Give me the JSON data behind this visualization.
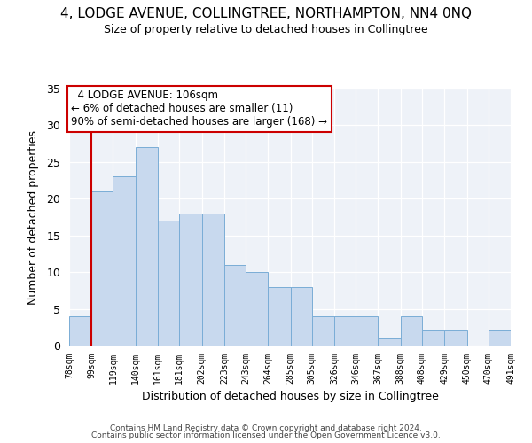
{
  "title": "4, LODGE AVENUE, COLLINGTREE, NORTHAMPTON, NN4 0NQ",
  "subtitle": "Size of property relative to detached houses in Collingtree",
  "xlabel": "Distribution of detached houses by size in Collingtree",
  "ylabel": "Number of detached properties",
  "bar_color": "#c8d9ee",
  "bar_edge_color": "#7aadd6",
  "bins": [
    78,
    99,
    119,
    140,
    161,
    181,
    202,
    223,
    243,
    264,
    285,
    305,
    326,
    346,
    367,
    388,
    408,
    429,
    450,
    470,
    491
  ],
  "counts": [
    4,
    21,
    23,
    27,
    17,
    18,
    18,
    11,
    10,
    8,
    8,
    4,
    4,
    4,
    1,
    4,
    2,
    2,
    0,
    2
  ],
  "tick_labels": [
    "78sqm",
    "99sqm",
    "119sqm",
    "140sqm",
    "161sqm",
    "181sqm",
    "202sqm",
    "223sqm",
    "243sqm",
    "264sqm",
    "285sqm",
    "305sqm",
    "326sqm",
    "346sqm",
    "367sqm",
    "388sqm",
    "408sqm",
    "429sqm",
    "450sqm",
    "470sqm",
    "491sqm"
  ],
  "ylim": [
    0,
    35
  ],
  "yticks": [
    0,
    5,
    10,
    15,
    20,
    25,
    30,
    35
  ],
  "property_line_x": 99,
  "annotation_title": "4 LODGE AVENUE: 106sqm",
  "annotation_line1": "← 6% of detached houses are smaller (11)",
  "annotation_line2": "90% of semi-detached houses are larger (168) →",
  "annotation_box_color": "#ffffff",
  "annotation_box_edge": "#cc0000",
  "line_color": "#cc0000",
  "bg_color": "#eef2f8",
  "footer1": "Contains HM Land Registry data © Crown copyright and database right 2024.",
  "footer2": "Contains public sector information licensed under the Open Government Licence v3.0."
}
